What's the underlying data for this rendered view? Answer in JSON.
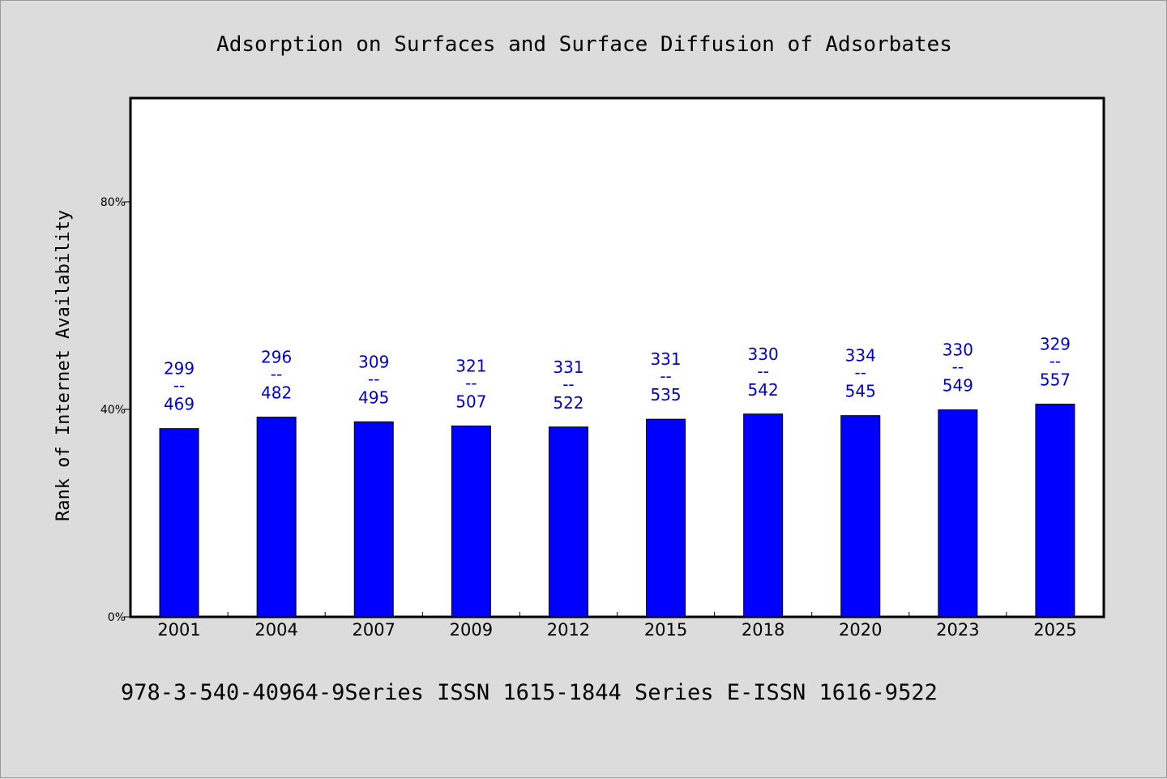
{
  "chart_data": {
    "type": "bar",
    "title": "Adsorption on Surfaces and Surface Diffusion of Adsorbates",
    "ylabel": "Rank of Internet Availability",
    "xlabel": "",
    "categories": [
      "2001",
      "2004",
      "2007",
      "2009",
      "2012",
      "2015",
      "2018",
      "2020",
      "2023",
      "2025"
    ],
    "values": [
      36.3,
      38.5,
      37.6,
      36.8,
      36.6,
      38.1,
      39.1,
      38.8,
      39.9,
      41.0
    ],
    "value_unit": "%",
    "data_labels": [
      {
        "top": "299",
        "mid": "--",
        "bottom": "469"
      },
      {
        "top": "296",
        "mid": "--",
        "bottom": "482"
      },
      {
        "top": "309",
        "mid": "--",
        "bottom": "495"
      },
      {
        "top": "321",
        "mid": "--",
        "bottom": "507"
      },
      {
        "top": "331",
        "mid": "--",
        "bottom": "522"
      },
      {
        "top": "331",
        "mid": "--",
        "bottom": "535"
      },
      {
        "top": "330",
        "mid": "--",
        "bottom": "542"
      },
      {
        "top": "334",
        "mid": "--",
        "bottom": "545"
      },
      {
        "top": "330",
        "mid": "--",
        "bottom": "549"
      },
      {
        "top": "329",
        "mid": "--",
        "bottom": "557"
      }
    ],
    "ylim": [
      0,
      100
    ],
    "yticks": [
      0,
      40,
      80
    ],
    "ytick_labels": [
      "0%",
      "40%",
      "80%"
    ],
    "grid": false,
    "legend": "none",
    "colors": {
      "bar": "#0000ff",
      "label": "#0000cc",
      "plot_background": "#ffffff",
      "page_background": "#dcdcdc"
    }
  },
  "footer": {
    "text": "978-3-540-40964-9Series ISSN 1615-1844 Series E-ISSN 1616-9522"
  }
}
